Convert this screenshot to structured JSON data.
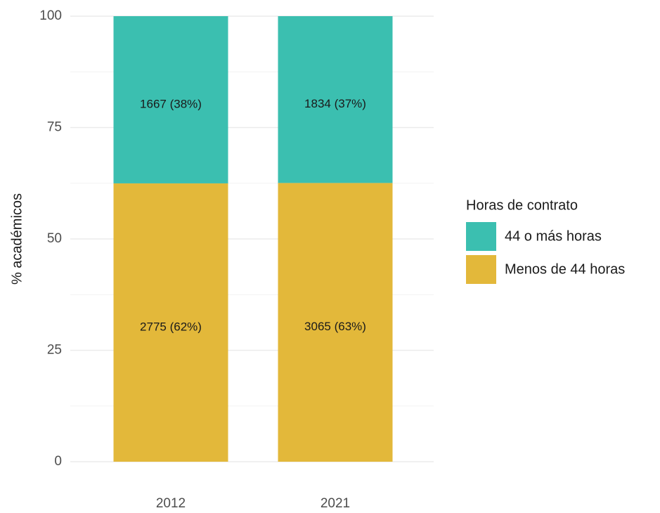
{
  "chart_data": {
    "type": "stacked_bar",
    "categories": [
      "2012",
      "2021"
    ],
    "y_label": "% académicos",
    "legend_title": "Horas de contrato",
    "series": [
      {
        "name": "44 o más horas",
        "color": "#3bbfb0",
        "values": [
          37.53,
          37.44
        ],
        "value_labels": [
          "1667 (38%)",
          "1834 (37%)"
        ]
      },
      {
        "name": "Menos de 44 horas",
        "color": "#e3b83a",
        "values": [
          62.47,
          62.56
        ],
        "value_labels": [
          "2775 (62%)",
          "3065 (63%)"
        ]
      }
    ],
    "ylim": [
      0,
      100
    ],
    "yticks": [
      0,
      25,
      50,
      75,
      100
    ],
    "grid": true,
    "legend": "right"
  }
}
